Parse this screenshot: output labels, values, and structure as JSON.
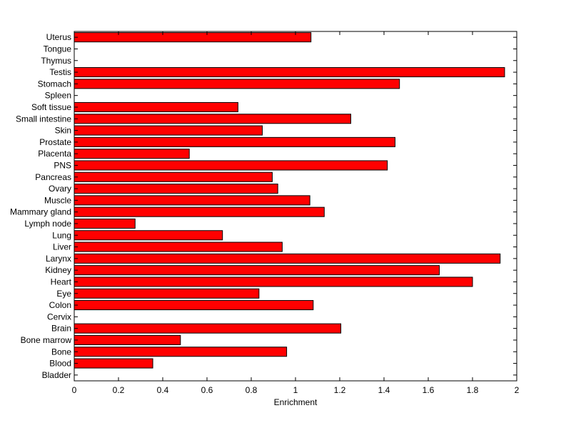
{
  "chart_data": {
    "type": "bar",
    "orientation": "horizontal",
    "title": "",
    "xlabel": "Enrichment",
    "ylabel": "",
    "xlim": [
      0,
      2
    ],
    "x_ticks": [
      0,
      0.2,
      0.4,
      0.6,
      0.8,
      1,
      1.2,
      1.4,
      1.6,
      1.8,
      2
    ],
    "x_tick_labels": [
      "0",
      "0.2",
      "0.4",
      "0.6",
      "0.8",
      "1",
      "1.2",
      "1.4",
      "1.6",
      "1.8",
      "2"
    ],
    "grid": false,
    "bar_color": "#ff0000",
    "bar_edge_color": "#000000",
    "categories": [
      "Uterus",
      "Tongue",
      "Thymus",
      "Testis",
      "Stomach",
      "Spleen",
      "Soft tissue",
      "Small intestine",
      "Skin",
      "Prostate",
      "Placenta",
      "PNS",
      "Pancreas",
      "Ovary",
      "Muscle",
      "Mammary gland",
      "Lymph node",
      "Lung",
      "Liver",
      "Larynx",
      "Kidney",
      "Heart",
      "Eye",
      "Colon",
      "Cervix",
      "Brain",
      "Bone marrow",
      "Bone",
      "Blood",
      "Bladder"
    ],
    "values": [
      1.07,
      0,
      0,
      1.945,
      1.47,
      0,
      0.74,
      1.25,
      0.85,
      1.45,
      0.52,
      1.415,
      0.895,
      0.92,
      1.065,
      1.13,
      0.275,
      0.67,
      0.94,
      1.925,
      1.65,
      1.8,
      0.835,
      1.08,
      0,
      1.205,
      0.48,
      0.96,
      0.355,
      0
    ]
  }
}
